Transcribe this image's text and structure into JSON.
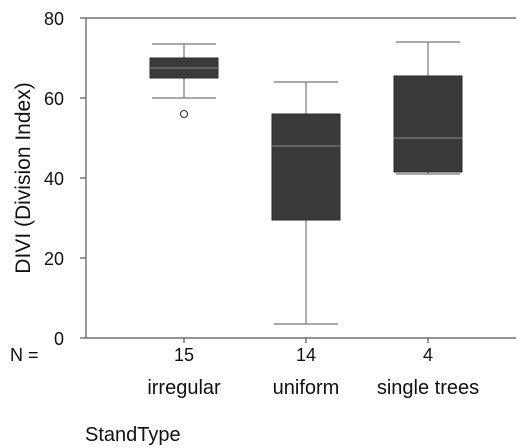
{
  "chart_data": {
    "type": "boxplot",
    "ylabel": "DIVI (Division Index)",
    "xlabel": "StandType",
    "n_label": "N =",
    "ylim": [
      0,
      80
    ],
    "yticks": [
      0,
      20,
      40,
      60,
      80
    ],
    "categories": [
      "irregular",
      "uniform",
      "single trees"
    ],
    "n": [
      "15",
      "14",
      "4"
    ],
    "boxes": [
      {
        "category": "irregular",
        "min": 60,
        "q1": 65,
        "median": 67.5,
        "q3": 70,
        "max": 73.5,
        "outliers": [
          56
        ]
      },
      {
        "category": "uniform",
        "min": 3.5,
        "q1": 29.5,
        "median": 48,
        "q3": 56,
        "max": 64,
        "outliers": []
      },
      {
        "category": "single trees",
        "min": 41,
        "q1": 41.5,
        "median": 50,
        "q3": 65.5,
        "max": 74,
        "outliers": []
      }
    ],
    "colors": {
      "box": "#3a3a3a",
      "whisker": "#777777",
      "axis": "#555555"
    }
  }
}
